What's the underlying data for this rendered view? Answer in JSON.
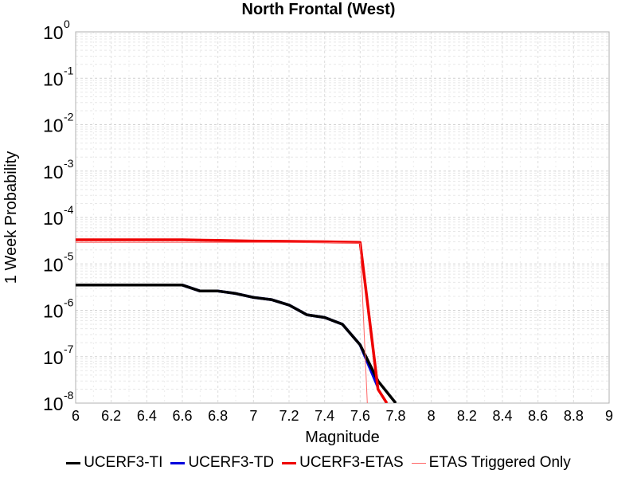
{
  "chart_data": {
    "type": "line",
    "title": "North Frontal  (West)",
    "xlabel": "Magnitude",
    "ylabel": "1 Week Probability",
    "xlim": [
      6,
      9
    ],
    "ylim": [
      1e-08,
      1
    ],
    "yscale": "log",
    "grid": true,
    "legend_position": "bottom",
    "x_ticks": [
      "6",
      "6.2",
      "6.4",
      "6.6",
      "6.8",
      "7",
      "7.2",
      "7.4",
      "7.6",
      "7.8",
      "8",
      "8.2",
      "8.4",
      "8.6",
      "8.8",
      "9"
    ],
    "y_ticks": [
      {
        "base": "10",
        "exp": "0"
      },
      {
        "base": "10",
        "exp": "-1"
      },
      {
        "base": "10",
        "exp": "-2"
      },
      {
        "base": "10",
        "exp": "-3"
      },
      {
        "base": "10",
        "exp": "-4"
      },
      {
        "base": "10",
        "exp": "-5"
      },
      {
        "base": "10",
        "exp": "-6"
      },
      {
        "base": "10",
        "exp": "-7"
      },
      {
        "base": "10",
        "exp": "-8"
      }
    ],
    "series": [
      {
        "name": "UCERF3-TI",
        "color": "#000000",
        "width": "thick",
        "x": [
          6.0,
          6.1,
          6.2,
          6.3,
          6.4,
          6.5,
          6.6,
          6.7,
          6.8,
          6.9,
          7.0,
          7.1,
          7.2,
          7.3,
          7.4,
          7.5,
          7.6,
          7.7,
          7.8
        ],
        "y": [
          3.5e-06,
          3.5e-06,
          3.5e-06,
          3.5e-06,
          3.5e-06,
          3.5e-06,
          3.5e-06,
          2.6e-06,
          2.6e-06,
          2.3e-06,
          1.9e-06,
          1.7e-06,
          1.3e-06,
          8e-07,
          7e-07,
          5e-07,
          1.8e-07,
          3e-08,
          1e-08
        ]
      },
      {
        "name": "UCERF3-TD",
        "color": "#0000dd",
        "width": "thick",
        "x": [
          6.0,
          6.1,
          6.2,
          6.3,
          6.4,
          6.5,
          6.6,
          6.7,
          6.8,
          6.9,
          7.0,
          7.1,
          7.2,
          7.3,
          7.4,
          7.5,
          7.6,
          7.7
        ],
        "y": [
          3.5e-06,
          3.5e-06,
          3.5e-06,
          3.5e-06,
          3.5e-06,
          3.5e-06,
          3.5e-06,
          2.6e-06,
          2.6e-06,
          2.3e-06,
          1.9e-06,
          1.7e-06,
          1.3e-06,
          8e-07,
          7e-07,
          5e-07,
          1.8e-07,
          2.2e-08
        ]
      },
      {
        "name": "UCERF3-ETAS",
        "color": "#ee0000",
        "width": "thick",
        "x": [
          6.0,
          6.2,
          6.4,
          6.6,
          6.8,
          7.0,
          7.2,
          7.4,
          7.6,
          7.7,
          7.75
        ],
        "y": [
          3.3e-05,
          3.3e-05,
          3.3e-05,
          3.3e-05,
          3.2e-05,
          3.1e-05,
          3.05e-05,
          3e-05,
          2.9e-05,
          2e-08,
          1e-08
        ]
      },
      {
        "name": "ETAS Triggered Only",
        "color": "#ff6666",
        "width": "thin",
        "x": [
          6.0,
          6.2,
          6.4,
          6.6,
          6.8,
          7.0,
          7.2,
          7.4,
          7.6,
          7.64
        ],
        "y": [
          2.9e-05,
          2.9e-05,
          2.9e-05,
          2.9e-05,
          2.9e-05,
          2.9e-05,
          2.9e-05,
          2.9e-05,
          2.8e-05,
          1e-08
        ]
      }
    ]
  }
}
